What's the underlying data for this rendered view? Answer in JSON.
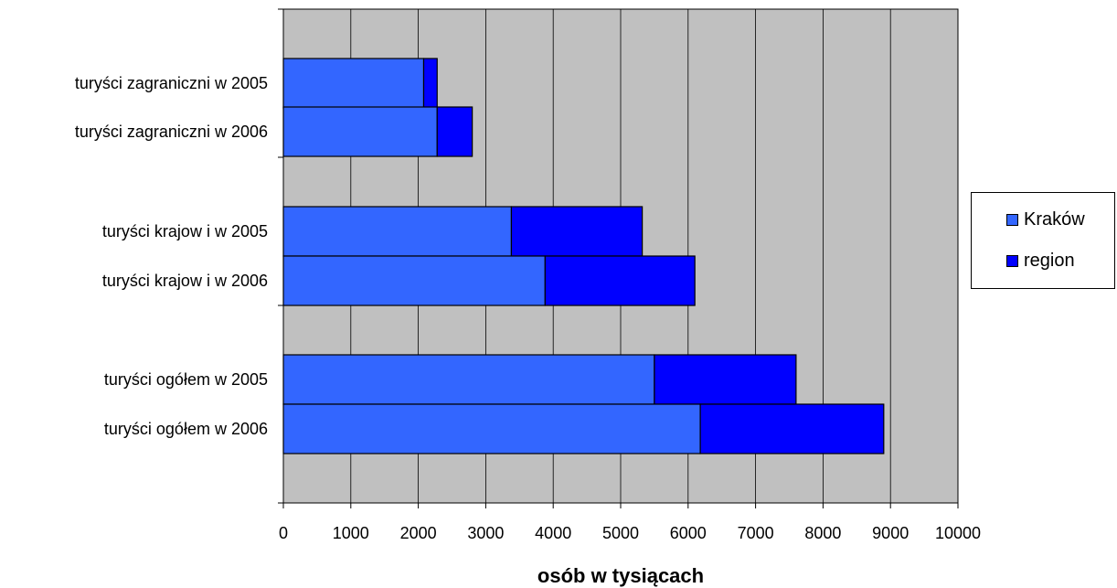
{
  "chart_data": {
    "type": "bar",
    "orientation": "horizontal",
    "stacked": true,
    "categories": [
      "turyści zagraniczni w  2005",
      "turyści zagraniczni w  2006",
      "turyści krajow i w  2005",
      "turyści krajow i w  2006",
      "turyści ogółem w  2005",
      "turyści ogółem w  2006"
    ],
    "series": [
      {
        "name": "Kraków",
        "values": [
          2080,
          2280,
          3380,
          3880,
          5500,
          6180
        ],
        "color": "#3366ff"
      },
      {
        "name": "region",
        "values": [
          200,
          520,
          1940,
          2220,
          2100,
          2720
        ],
        "color": "#0000ff"
      }
    ],
    "xlabel": "osób w tysiącach",
    "ylabel": "",
    "xlim": [
      0,
      10000
    ],
    "xticks": [
      0,
      1000,
      2000,
      3000,
      4000,
      5000,
      6000,
      7000,
      8000,
      9000,
      10000
    ],
    "grid": true,
    "plot_background": "#c0c0c0",
    "legend_position": "right"
  }
}
